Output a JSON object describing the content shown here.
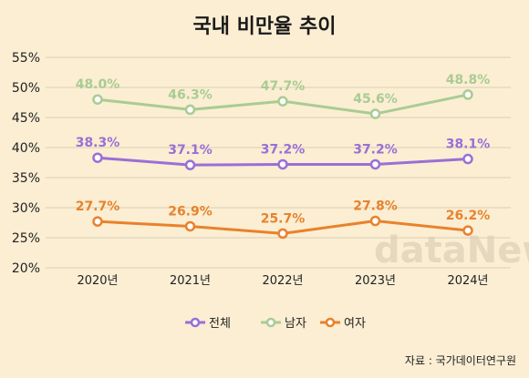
{
  "chart_data": {
    "type": "line",
    "title": "국내 비만율 추이",
    "categories": [
      "2020년",
      "2021년",
      "2022년",
      "2023년",
      "2024년"
    ],
    "ylim": [
      20,
      55
    ],
    "yticks": [
      "20%",
      "25%",
      "30%",
      "35%",
      "40%",
      "45%",
      "50%",
      "55%"
    ],
    "grid": true,
    "legend_position": "bottom",
    "series": [
      {
        "name": "전체",
        "values": [
          38.3,
          37.1,
          37.2,
          37.2,
          38.1
        ],
        "labels": [
          "38.3%",
          "37.1%",
          "37.2%",
          "37.2%",
          "38.1%"
        ],
        "color": "#9a6fd6"
      },
      {
        "name": "남자",
        "values": [
          48.0,
          46.3,
          47.7,
          45.6,
          48.8
        ],
        "labels": [
          "48.0%",
          "46.3%",
          "47.7%",
          "45.6%",
          "48.8%"
        ],
        "color": "#a9cc93"
      },
      {
        "name": "여자",
        "values": [
          27.7,
          26.9,
          25.7,
          27.8,
          26.2
        ],
        "labels": [
          "27.7%",
          "26.9%",
          "25.7%",
          "27.8%",
          "26.2%"
        ],
        "color": "#e8822c"
      }
    ],
    "source": "자료 : 국가데이터연구원",
    "watermark": "dataNews"
  }
}
